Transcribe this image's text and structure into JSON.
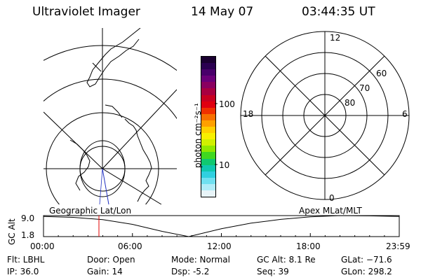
{
  "header": {
    "instrument": "Ultraviolet Imager",
    "date": "14 May 07",
    "time": "03:44:35 UT"
  },
  "colorbar": {
    "unit_label": "photon cm⁻²s⁻¹",
    "tick_100": "100",
    "tick_10": "10",
    "colors_top_to_bottom": [
      "#1a0030",
      "#2a0050",
      "#48006a",
      "#6a0078",
      "#8a0060",
      "#a80040",
      "#c80020",
      "#e00010",
      "#f03000",
      "#f87000",
      "#ffa000",
      "#ffd000",
      "#f8f000",
      "#d0f000",
      "#90e800",
      "#40d820",
      "#10c870",
      "#10c8b0",
      "#30d0e0",
      "#70e0f0",
      "#b0ecf8",
      "#e8f4f8"
    ]
  },
  "geo_panel": {
    "label": "Geographic Lat/Lon"
  },
  "polar_panel": {
    "label": "Apex MLat/MLT",
    "mlt_12": "12",
    "mlt_18": "18",
    "mlt_6": "6",
    "mlt_0": "0",
    "lat_60": "60",
    "lat_70": "70",
    "lat_80": "80"
  },
  "altitude_plot": {
    "ylabel": "GC Alt",
    "y_top": "9.0",
    "y_bottom": "1.8",
    "x_ticks": [
      "00:00",
      "06:00",
      "12:00",
      "18:00",
      "23:59"
    ],
    "current_time_marker_hours": 3.74,
    "marker_color": "#e00000"
  },
  "chart_data": {
    "type": "line",
    "xlabel": "",
    "ylabel": "GC Alt",
    "ylim": [
      1.8,
      9.0
    ],
    "x_hours": [
      0,
      2,
      4,
      6,
      8,
      9.8,
      12,
      14,
      16,
      18,
      20,
      22,
      24
    ],
    "y": [
      8.7,
      8.4,
      7.6,
      6.0,
      3.6,
      1.8,
      4.5,
      6.4,
      7.7,
      8.6,
      9.0,
      8.9,
      8.7
    ]
  },
  "status": {
    "filter": "Flt: LBHL",
    "ip": "IP: 36.0",
    "door": "Door: Open",
    "gain": "Gain: 14",
    "mode": "Mode: Normal",
    "dsp": "Dsp:    -5.2",
    "gc_alt": "GC Alt: 8.1 Re",
    "seq": "Seq: 39",
    "glat": "GLat: −71.6",
    "glon": "GLon: 298.2"
  }
}
